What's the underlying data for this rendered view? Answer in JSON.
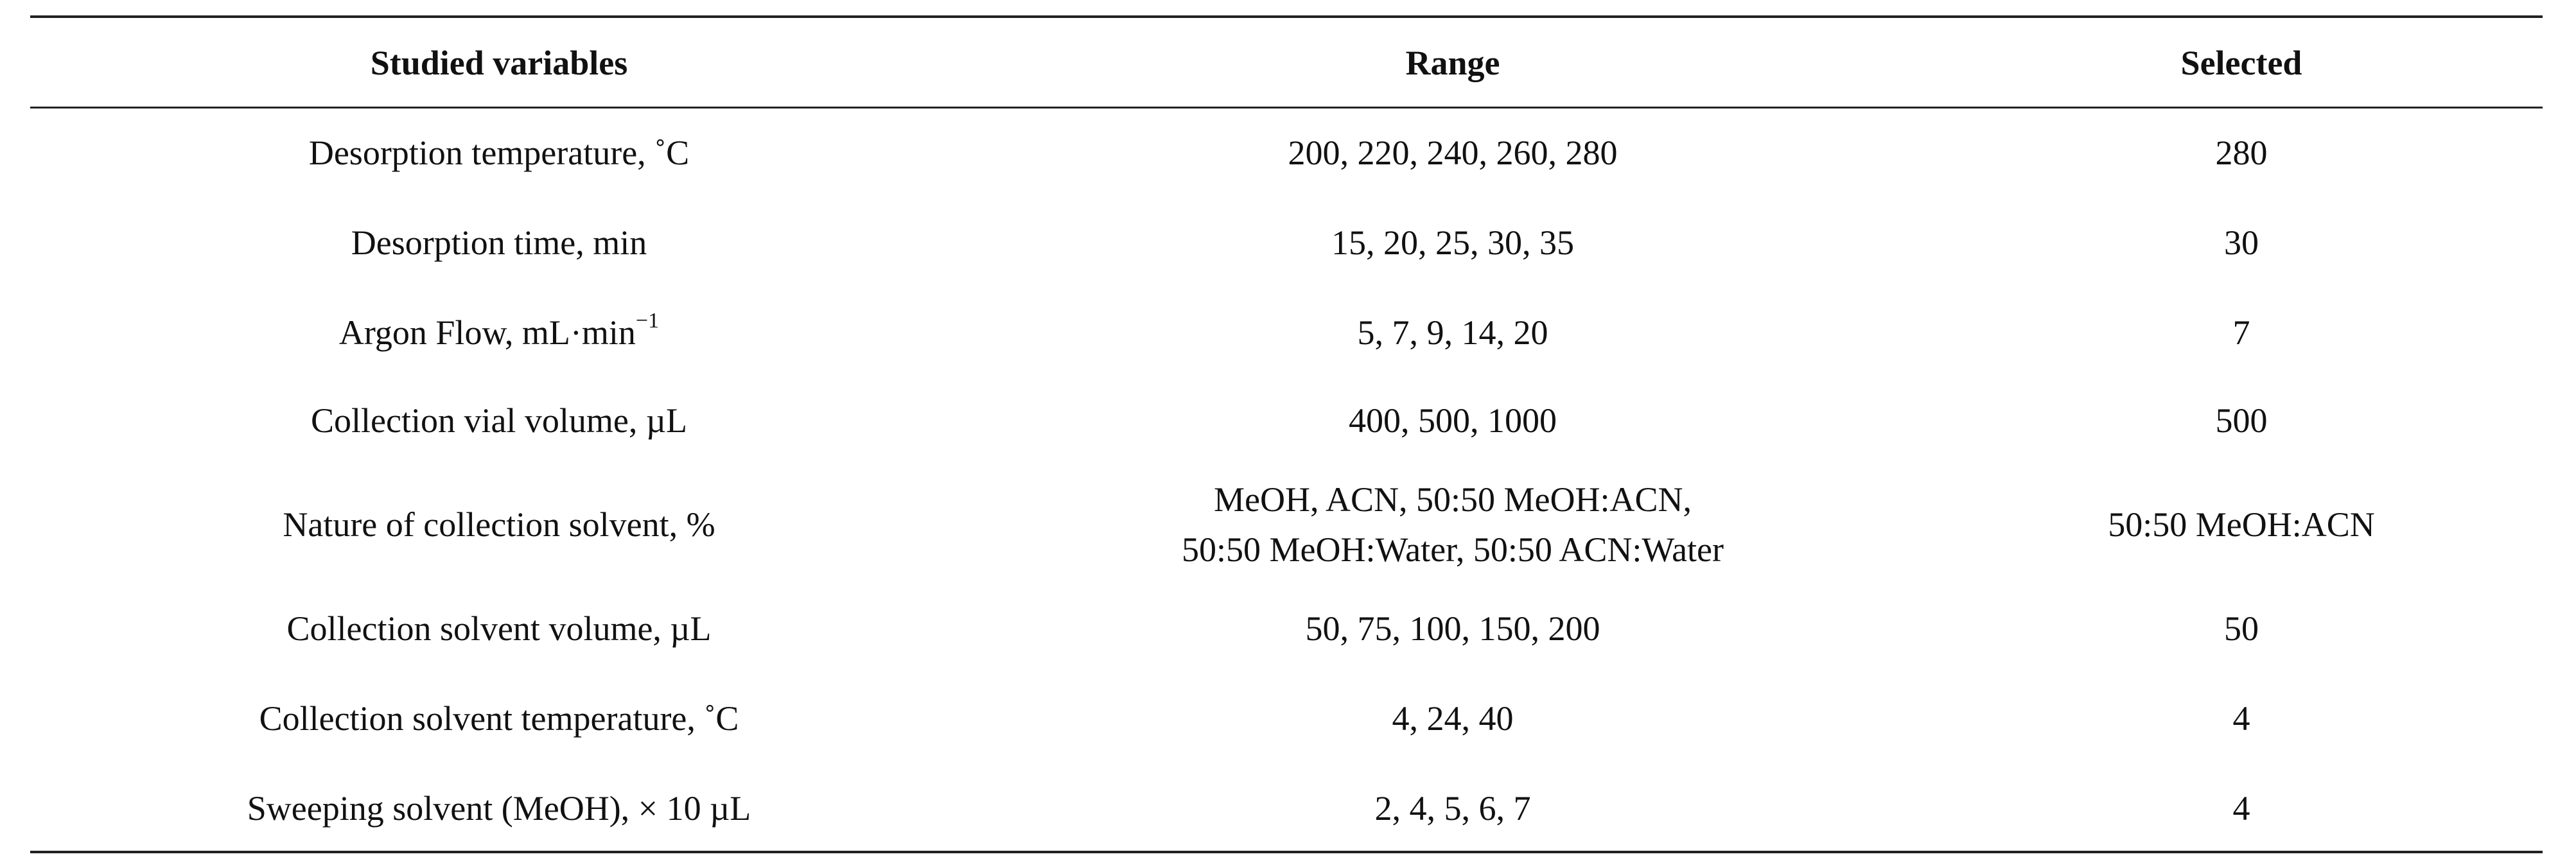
{
  "table": {
    "header": [
      "Studied variables",
      "Range",
      "Selected"
    ],
    "rows": [
      [
        "Desorption temperature, ˚C",
        "200, 220, 240, 260, 280",
        "280"
      ],
      [
        "Desorption time, min",
        "15, 20, 25, 30, 35",
        "30"
      ],
      [
        {
          "text": "Argon Flow, mL·min",
          "sup": "−1"
        },
        "5, 7, 9, 14, 20",
        "7"
      ],
      [
        "Collection vial volume, µL",
        "400, 500, 1000",
        "500"
      ],
      [
        "Nature of collection solvent, %",
        [
          "MeOH, ACN, 50:50 MeOH:ACN,",
          "50:50 MeOH:Water, 50:50 ACN:Water"
        ],
        "50:50 MeOH:ACN"
      ],
      [
        "Collection solvent volume, µL",
        "50, 75, 100, 150, 200",
        "50"
      ],
      [
        "Collection solvent temperature, ˚C",
        "4, 24, 40",
        "4"
      ],
      [
        "Sweeping solvent (MeOH), × 10 µL",
        "2, 4, 5, 6, 7",
        "4"
      ]
    ]
  }
}
